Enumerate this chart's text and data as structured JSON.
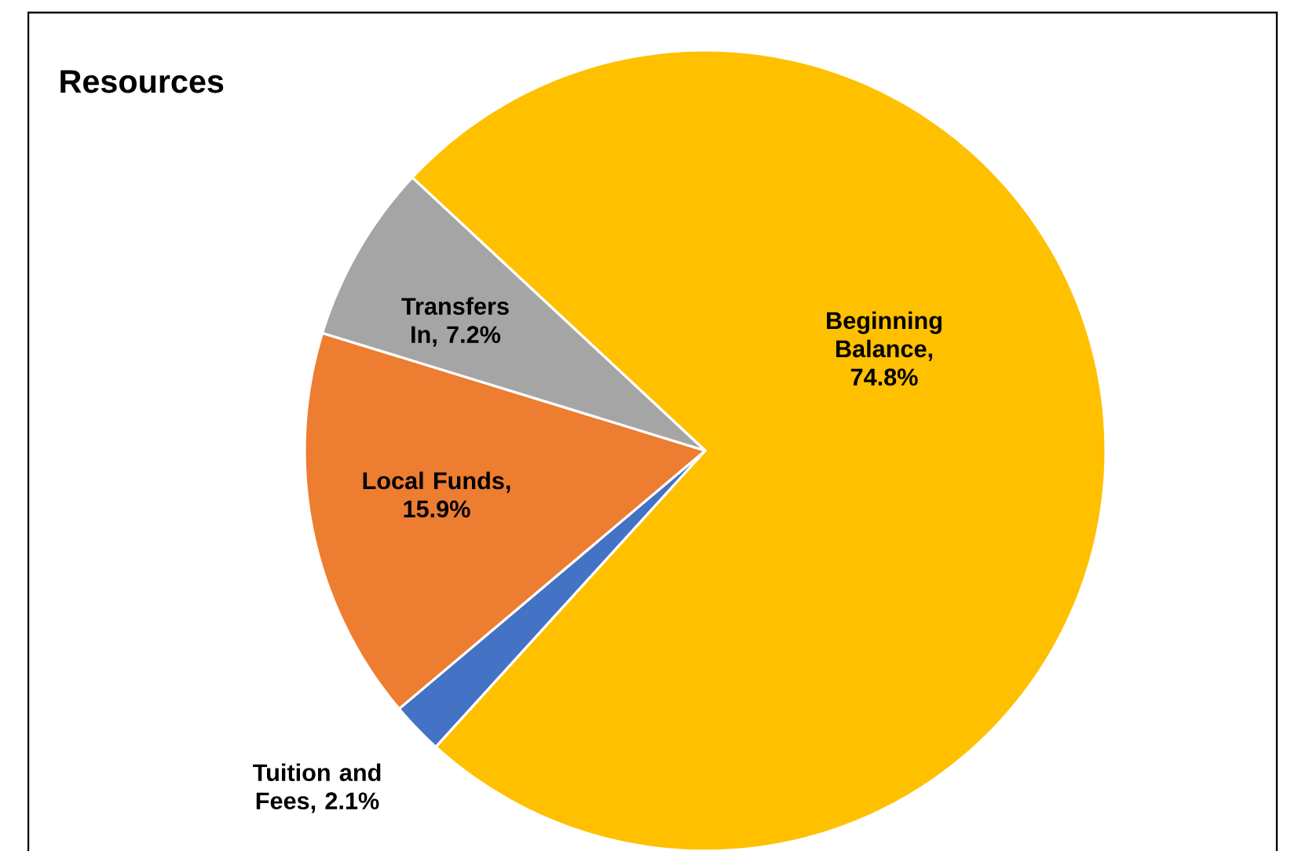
{
  "chart_data": {
    "type": "pie",
    "title": "Resources",
    "categories": [
      "Beginning Balance",
      "Tuition and Fees",
      "Local Funds",
      "Transfers In"
    ],
    "values": [
      74.8,
      2.1,
      15.9,
      7.2
    ],
    "value_labels": [
      ", 74.8%",
      ", 2.1%",
      ", 15.9%",
      ", 7.2%"
    ],
    "colors": [
      "#ffc000",
      "#4472c4",
      "#ed7d31",
      "#a5a5a5"
    ],
    "legend": false
  }
}
